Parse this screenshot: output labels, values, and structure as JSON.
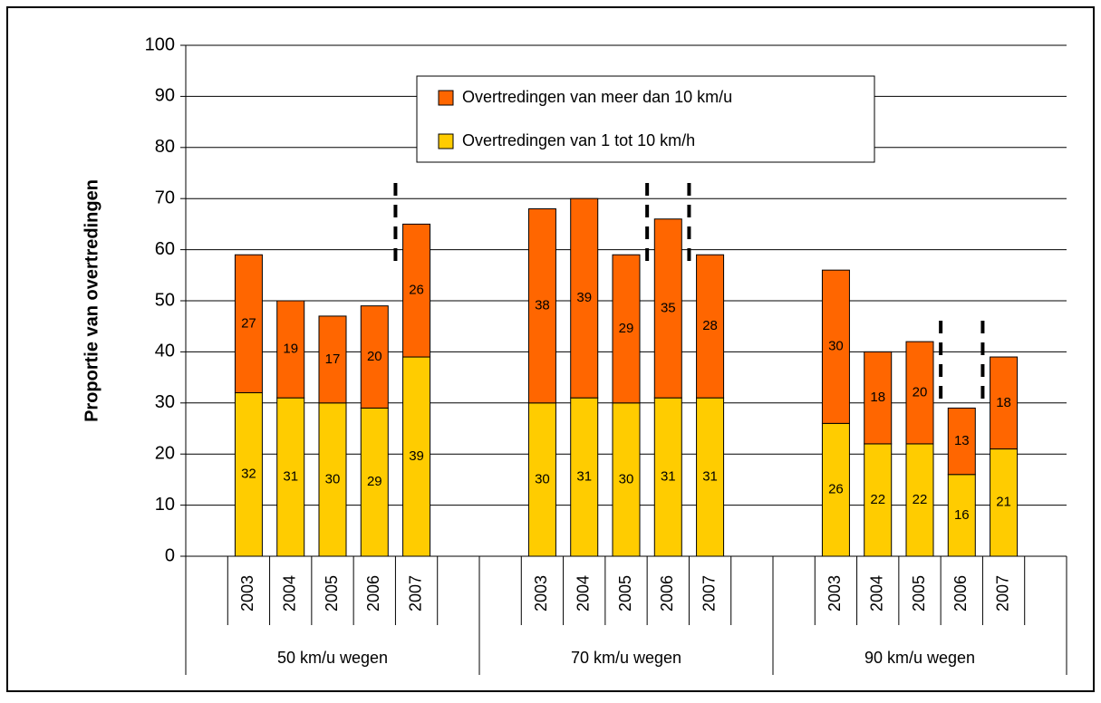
{
  "chart_data": {
    "type": "stacked-bar",
    "y_label": "Proportie van overtredingen",
    "categories": [
      "2003",
      "2004",
      "2005",
      "2006",
      "2007",
      "2003",
      "2004",
      "2005",
      "2006",
      "2007",
      "2003",
      "2004",
      "2005",
      "2006",
      "2007"
    ],
    "groups": [
      "50 km/u wegen",
      "70 km/u wegen",
      "90 km/u wegen"
    ],
    "series": [
      {
        "name": "Overtredingen van 1 tot 10 km/h",
        "color": "#FFCC00",
        "values": [
          32,
          31,
          30,
          29,
          39,
          30,
          31,
          30,
          31,
          31,
          26,
          22,
          22,
          16,
          21
        ]
      },
      {
        "name": "Overtredingen van meer dan 10 km/u",
        "color": "#FF6600",
        "values": [
          27,
          19,
          17,
          20,
          26,
          38,
          39,
          29,
          35,
          28,
          30,
          18,
          20,
          13,
          18
        ]
      }
    ],
    "ylim": [
      0,
      100
    ],
    "yticks": [
      0,
      10,
      20,
      30,
      40,
      50,
      60,
      70,
      80,
      90,
      100
    ],
    "grid": true
  }
}
